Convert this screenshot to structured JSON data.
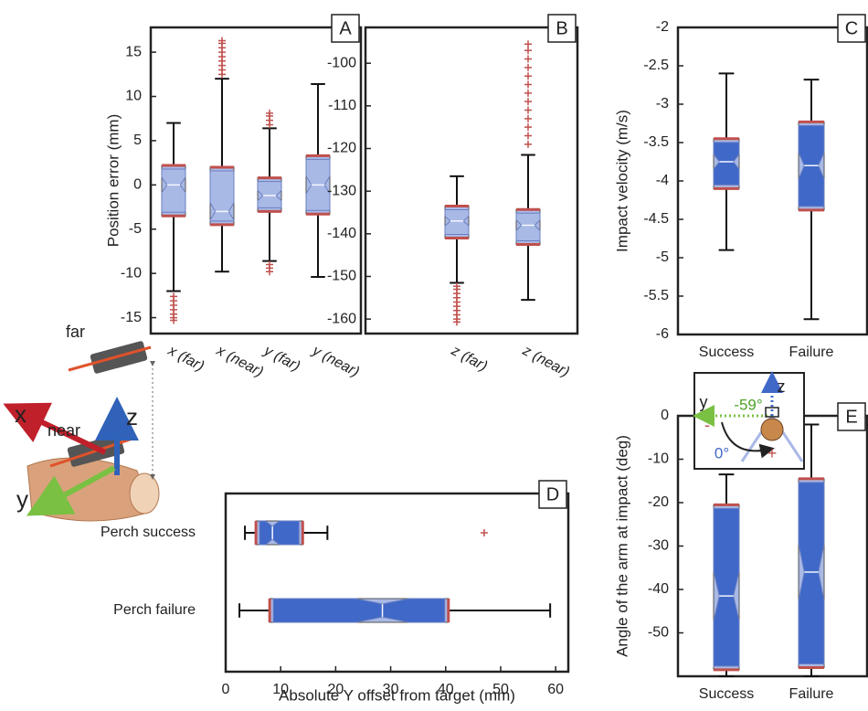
{
  "chart_data": [
    {
      "type": "box",
      "label": "A",
      "ylabel": "Position error (mm)",
      "orientation": "vertical",
      "categories": [
        "x (far)",
        "x (near)",
        "y (far)",
        "y (near)"
      ],
      "ylim": [
        -16.8,
        17.8
      ],
      "yticks": [
        -15,
        -10,
        -5,
        0,
        5,
        10,
        15
      ],
      "box_color": "#a9b9e6",
      "edge_color": "#c0504d",
      "series": [
        {
          "values": [
            {
              "whislo": -12,
              "q1": -3.5,
              "med": 0,
              "q3": 2.2,
              "whishi": 7,
              "fliers": [
                -12.6,
                -13.1,
                -13.6,
                -14.1,
                -14.6,
                -15,
                -15.3
              ]
            },
            {
              "whislo": -9.8,
              "q1": -4.5,
              "med": -3,
              "q3": 2,
              "whishi": 12,
              "fliers": [
                12.5,
                13,
                13.5,
                14,
                14.5,
                15,
                15.5,
                16,
                16.3
              ]
            },
            {
              "whislo": -8.6,
              "q1": -3,
              "med": -1.2,
              "q3": 0.8,
              "whishi": 6.4,
              "fliers": [
                -9,
                -9.4,
                -9.8,
                6.8,
                7.3,
                7.8,
                8.1
              ]
            },
            {
              "whislo": -10.4,
              "q1": -3.3,
              "med": 0,
              "q3": 3.3,
              "whishi": 11.4,
              "fliers": []
            }
          ]
        }
      ]
    },
    {
      "type": "box",
      "label": "B",
      "orientation": "vertical",
      "categories": [
        "z (far)",
        "z (near)"
      ],
      "ylim": [
        -163.4,
        -91.6
      ],
      "yticks": [
        -160,
        -150,
        -140,
        -130,
        -120,
        -110,
        -100
      ],
      "box_color": "#a9b9e6",
      "edge_color": "#c0504d",
      "series": [
        {
          "values": [
            {
              "whislo": -151.5,
              "q1": -141,
              "med": -137,
              "q3": -133.5,
              "whishi": -126.5,
              "fliers": [
                -152.3,
                -153,
                -154,
                -155,
                -156,
                -157,
                -158,
                -159,
                -160,
                -160.7
              ]
            },
            {
              "whislo": -155.5,
              "q1": -142.5,
              "med": -138,
              "q3": -134.3,
              "whishi": -121.5,
              "fliers": [
                -119,
                -117,
                -115,
                -113,
                -111,
                -109,
                -107,
                -105,
                -103,
                -101,
                -99,
                -97,
                -95.5
              ]
            }
          ]
        }
      ]
    },
    {
      "type": "box",
      "label": "C",
      "ylabel": "Impact velocity (m/s)",
      "orientation": "vertical",
      "categories": [
        "Success",
        "Failure"
      ],
      "ylim": [
        -6,
        -2
      ],
      "yticks": [
        -6,
        -5.5,
        -5,
        -4.5,
        -4,
        -3.5,
        -3,
        -2.5,
        -2
      ],
      "box_color": "#a9b9e6",
      "notch_color": "#4068c8",
      "edge_color": "#c0504d",
      "series": [
        {
          "values": [
            {
              "whislo": -4.9,
              "q1": -4.1,
              "med": -3.75,
              "q3": -3.45,
              "whishi": -2.6,
              "fliers": []
            },
            {
              "whislo": -5.8,
              "q1": -4.38,
              "med": -3.8,
              "q3": -3.23,
              "whishi": -2.68,
              "fliers": []
            }
          ]
        }
      ]
    },
    {
      "type": "box",
      "label": "D",
      "xlabel": "Absolute Y offset from target (mm)",
      "orientation": "horizontal",
      "categories": [
        "Perch success",
        "Perch failure"
      ],
      "xlim": [
        0,
        62.3
      ],
      "xticks": [
        0,
        10,
        20,
        30,
        40,
        50,
        60
      ],
      "box_color": "#a9b9e6",
      "notch_color": "#4068c8",
      "edge_color": "#c0504d",
      "series": [
        {
          "values": [
            {
              "whislo": 3.5,
              "q1": 5.5,
              "med": 8.5,
              "q3": 14,
              "whishi": 18.5,
              "fliers": [
                47
              ]
            },
            {
              "whislo": 2.5,
              "q1": 8,
              "med": 28.5,
              "q3": 40.5,
              "whishi": 59,
              "fliers": []
            }
          ]
        }
      ]
    },
    {
      "type": "box",
      "label": "E",
      "ylabel": "Angle of the arm at impact (deg)",
      "orientation": "vertical",
      "categories": [
        "Success",
        "Failure"
      ],
      "ylim": [
        -60,
        0
      ],
      "yticks": [
        -50,
        -40,
        -30,
        -20,
        -10,
        0
      ],
      "box_color": "#a9b9e6",
      "notch_color": "#4068c8",
      "edge_color": "#c0504d",
      "annotations": [
        "y",
        "z",
        "-59°",
        "0°",
        "-",
        "+"
      ],
      "series": [
        {
          "values": [
            {
              "whislo": -60,
              "q1": -58.5,
              "med": -41.5,
              "q3": -20.5,
              "whishi": -13.5,
              "fliers": []
            },
            {
              "whislo": -60,
              "q1": -58,
              "med": -36,
              "q3": -14.5,
              "whishi": -2,
              "fliers": []
            }
          ]
        }
      ]
    }
  ],
  "illustration": {
    "far": "far",
    "near": "near",
    "x": "x",
    "z": "z",
    "y": "y"
  }
}
